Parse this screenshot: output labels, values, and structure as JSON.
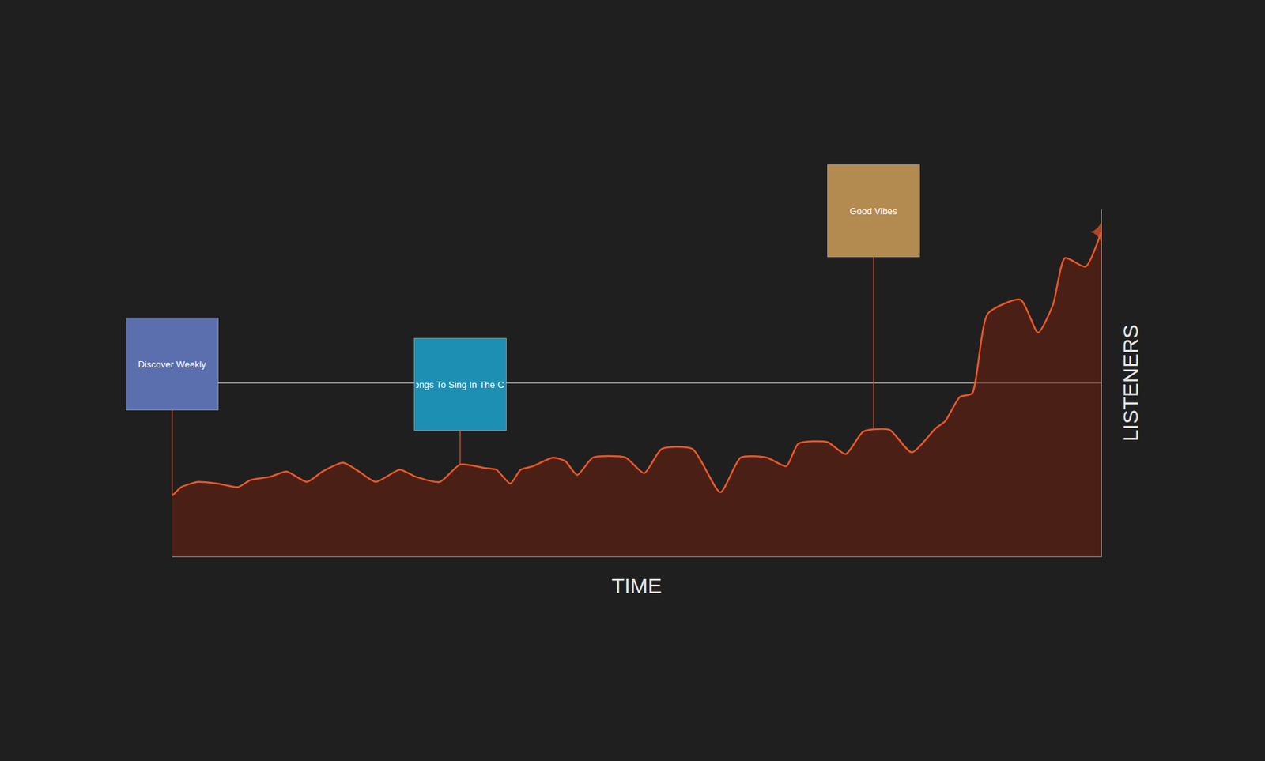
{
  "chart_data": {
    "type": "area",
    "x_label": "TIME",
    "y_label": "LISTENERS",
    "x": [
      0,
      1.0,
      2.8,
      4.9,
      7.1,
      8.4,
      10.6,
      12.3,
      14.5,
      16.2,
      18.4,
      20.1,
      21.9,
      24.5,
      26.2,
      28.8,
      31.0,
      33.6,
      34.9,
      36.4,
      37.5,
      38.8,
      41.0,
      42.3,
      43.6,
      45.3,
      48.8,
      50.8,
      52.7,
      56.0,
      59.0,
      61.2,
      64.0,
      66.1,
      67.4,
      70.5,
      72.5,
      74.4,
      77.2,
      79.6,
      82.2,
      83.2,
      84.8,
      86.1,
      87.8,
      91.3,
      93.2,
      94.8,
      96.1,
      98.3,
      100
    ],
    "values": [
      0.35,
      0.4,
      0.43,
      0.42,
      0.4,
      0.44,
      0.46,
      0.49,
      0.43,
      0.49,
      0.54,
      0.49,
      0.43,
      0.5,
      0.46,
      0.43,
      0.53,
      0.51,
      0.5,
      0.42,
      0.5,
      0.52,
      0.57,
      0.55,
      0.47,
      0.57,
      0.57,
      0.48,
      0.62,
      0.62,
      0.37,
      0.57,
      0.57,
      0.52,
      0.65,
      0.66,
      0.59,
      0.72,
      0.73,
      0.6,
      0.74,
      0.78,
      0.92,
      0.94,
      1.4,
      1.48,
      1.29,
      1.45,
      1.72,
      1.67,
      1.87
    ],
    "color": "#e8572a",
    "marker": "star",
    "xlim": [
      0,
      100
    ],
    "ylim": [
      0,
      2
    ],
    "yticks": [
      0,
      1,
      2
    ],
    "grid": true,
    "tick_labels": false,
    "annotations": [
      {
        "x": 0,
        "y": 0.35,
        "text": "Discover Weekly"
      },
      {
        "x": 31.0,
        "y": 0.53,
        "text": "Songs To Sing In The Car"
      },
      {
        "x": 75.5,
        "y": 0.73,
        "text": "Good Vibes"
      }
    ]
  }
}
